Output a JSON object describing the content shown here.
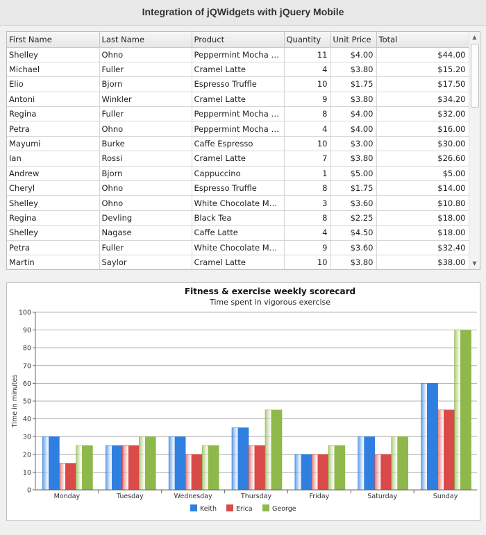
{
  "page": {
    "title": "Integration of jQWidgets with jQuery Mobile"
  },
  "grid": {
    "columns": [
      "First Name",
      "Last Name",
      "Product",
      "Quantity",
      "Unit Price",
      "Total"
    ],
    "rows": [
      [
        "Shelley",
        "Ohno",
        "Peppermint Mocha T...",
        "11",
        "$4.00",
        "$44.00"
      ],
      [
        "Michael",
        "Fuller",
        "Cramel Latte",
        "4",
        "$3.80",
        "$15.20"
      ],
      [
        "Elio",
        "Bjorn",
        "Espresso Truffle",
        "10",
        "$1.75",
        "$17.50"
      ],
      [
        "Antoni",
        "Winkler",
        "Cramel Latte",
        "9",
        "$3.80",
        "$34.20"
      ],
      [
        "Regina",
        "Fuller",
        "Peppermint Mocha T...",
        "8",
        "$4.00",
        "$32.00"
      ],
      [
        "Petra",
        "Ohno",
        "Peppermint Mocha T...",
        "4",
        "$4.00",
        "$16.00"
      ],
      [
        "Mayumi",
        "Burke",
        "Caffe Espresso",
        "10",
        "$3.00",
        "$30.00"
      ],
      [
        "Ian",
        "Rossi",
        "Cramel Latte",
        "7",
        "$3.80",
        "$26.60"
      ],
      [
        "Andrew",
        "Bjorn",
        "Cappuccino",
        "1",
        "$5.00",
        "$5.00"
      ],
      [
        "Cheryl",
        "Ohno",
        "Espresso Truffle",
        "8",
        "$1.75",
        "$14.00"
      ],
      [
        "Shelley",
        "Ohno",
        "White Chocolate Mo...",
        "3",
        "$3.60",
        "$10.80"
      ],
      [
        "Regina",
        "Devling",
        "Black Tea",
        "8",
        "$2.25",
        "$18.00"
      ],
      [
        "Shelley",
        "Nagase",
        "Caffe Latte",
        "4",
        "$4.50",
        "$18.00"
      ],
      [
        "Petra",
        "Fuller",
        "White Chocolate Mo...",
        "9",
        "$3.60",
        "$32.40"
      ],
      [
        "Martin",
        "Saylor",
        "Cramel Latte",
        "10",
        "$3.80",
        "$38.00"
      ]
    ],
    "scroll_up_icon": "triangle-up-icon",
    "scroll_down_icon": "triangle-down-icon"
  },
  "chart_data": {
    "type": "bar",
    "title": "Fitness & exercise weekly scorecard",
    "subtitle": "Time spent in vigorous exercise",
    "xlabel": "",
    "ylabel": "Time in minutes",
    "ylim": [
      0,
      100
    ],
    "yticks": [
      0,
      10,
      20,
      30,
      40,
      50,
      60,
      70,
      80,
      90,
      100
    ],
    "grid": true,
    "legend_position": "bottom-center",
    "categories": [
      "Monday",
      "Tuesday",
      "Wednesday",
      "Thursday",
      "Friday",
      "Saturday",
      "Sunday"
    ],
    "series": [
      {
        "name": "Keith",
        "color": "#2f7fe0",
        "values": [
          30,
          25,
          30,
          35,
          20,
          30,
          60
        ]
      },
      {
        "name": "Erica",
        "color": "#d94a48",
        "values": [
          15,
          25,
          20,
          25,
          20,
          20,
          45
        ]
      },
      {
        "name": "George",
        "color": "#8fb84a",
        "values": [
          25,
          30,
          25,
          45,
          25,
          30,
          90
        ]
      }
    ]
  }
}
